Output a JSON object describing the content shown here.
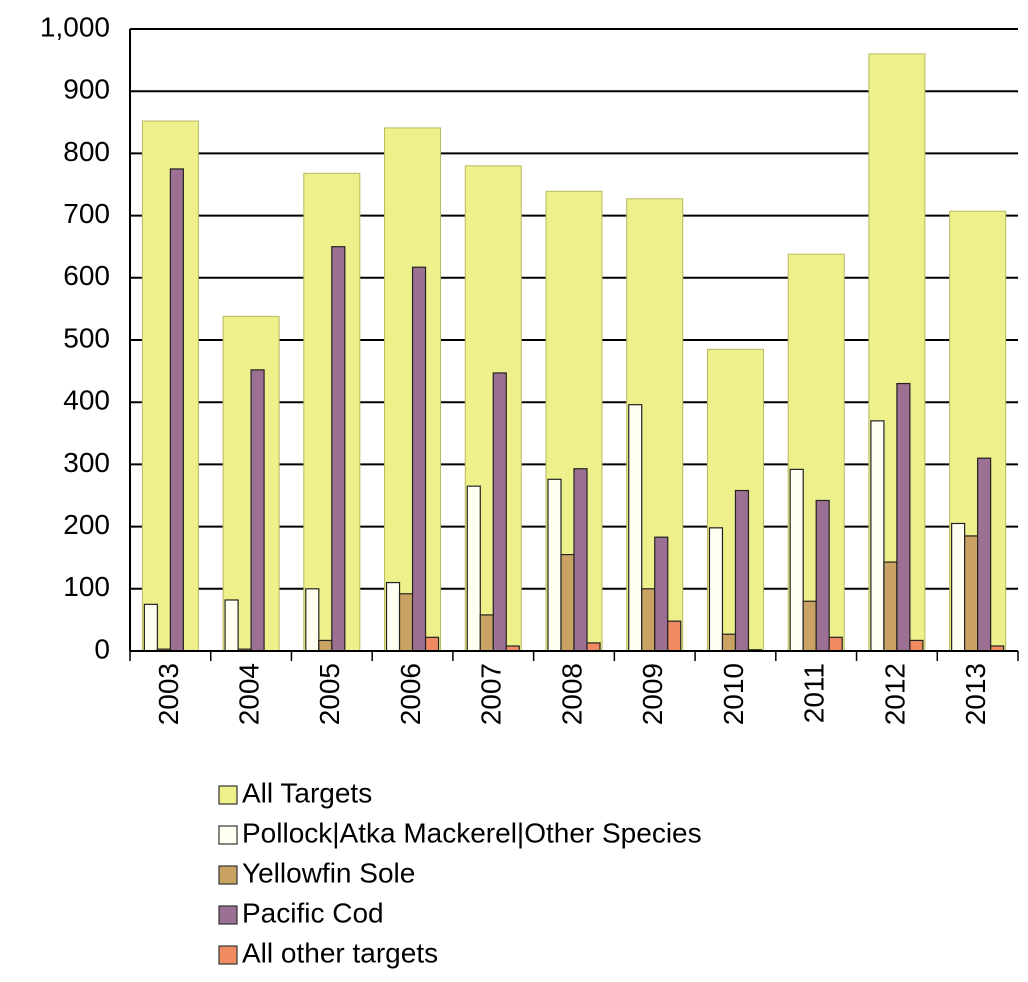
{
  "chart_data": {
    "type": "bar",
    "categories": [
      "2003",
      "2004",
      "2005",
      "2006",
      "2007",
      "2008",
      "2009",
      "2010",
      "2011",
      "2012",
      "2013"
    ],
    "series": [
      {
        "name": "All Targets",
        "color": "#eef08c",
        "values": [
          852,
          538,
          768,
          841,
          780,
          739,
          727,
          485,
          638,
          960,
          707
        ]
      },
      {
        "name": "Pollock|Atka Mackerel|Other Species",
        "color": "#fffff2",
        "values": [
          75,
          82,
          100,
          110,
          265,
          276,
          396,
          198,
          292,
          370,
          205
        ]
      },
      {
        "name": "Yellowfin Sole",
        "color": "#c9a264",
        "values": [
          3,
          3,
          17,
          92,
          58,
          155,
          100,
          27,
          80,
          143,
          185
        ]
      },
      {
        "name": "Pacific Cod",
        "color": "#9c7092",
        "values": [
          775,
          452,
          650,
          617,
          447,
          293,
          183,
          258,
          242,
          430,
          310
        ]
      },
      {
        "name": "All other targets",
        "color": "#f08a62",
        "values": [
          0,
          0,
          0,
          22,
          8,
          13,
          48,
          2,
          22,
          17,
          8
        ]
      }
    ],
    "ylim": [
      0,
      1000
    ],
    "yticks": [
      0,
      100,
      200,
      300,
      400,
      500,
      600,
      700,
      800,
      900,
      {
        "value": 1000,
        "label": "1,000"
      }
    ],
    "grid": true
  }
}
